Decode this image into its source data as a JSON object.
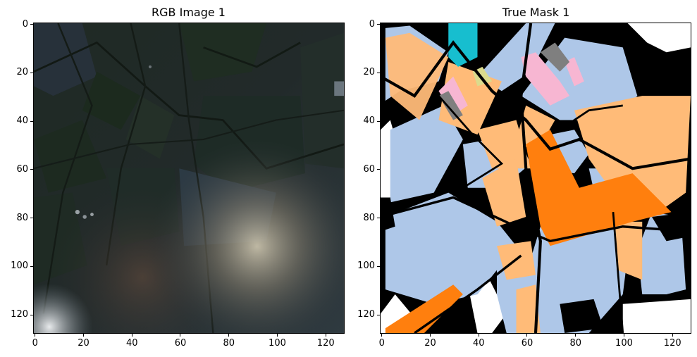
{
  "figure": {
    "panels": [
      {
        "title": "RGB Image 1",
        "x_ticks": [
          "0",
          "20",
          "40",
          "60",
          "80",
          "100",
          "120"
        ],
        "y_ticks": [
          "0",
          "20",
          "40",
          "60",
          "80",
          "100",
          "120"
        ],
        "image_kind": "satellite-rgb"
      },
      {
        "title": "True Mask 1",
        "x_ticks": [
          "0",
          "20",
          "40",
          "60",
          "80",
          "100",
          "120"
        ],
        "y_ticks": [
          "0",
          "20",
          "40",
          "60",
          "80",
          "100",
          "120"
        ],
        "image_kind": "segmentation-mask"
      }
    ],
    "axis_range": [
      0,
      128
    ],
    "mask_colors": {
      "background": "#000000",
      "light_blue": "#aec7e8",
      "light_orange": "#ffbb78",
      "orange": "#ff7f0e",
      "cyan": "#17becf",
      "pink": "#f7b6d2",
      "gray": "#7f7f7f",
      "olive_light": "#dbdb8d",
      "white": "#ffffff"
    }
  }
}
